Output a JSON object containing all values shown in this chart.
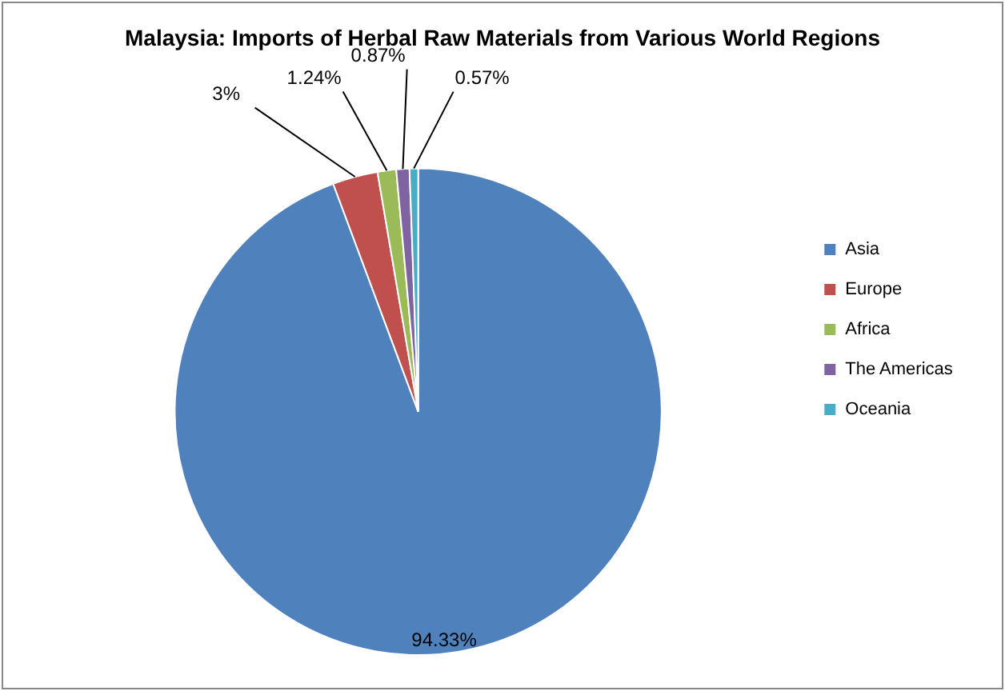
{
  "chart_data": {
    "type": "pie",
    "title": "Malaysia: Imports of Herbal Raw Materials from Various World Regions",
    "categories": [
      "Asia",
      "Europe",
      "Africa",
      "The Americas",
      "Oceania"
    ],
    "values": [
      94.33,
      3,
      1.24,
      0.87,
      0.57
    ],
    "value_labels": [
      "94.33%",
      "3%",
      "1.24%",
      "0.87%",
      "0.57%"
    ],
    "colors": [
      "#4f81bd",
      "#c0504d",
      "#9bbb59",
      "#8064a2",
      "#4bacc6"
    ],
    "legend": "right"
  }
}
